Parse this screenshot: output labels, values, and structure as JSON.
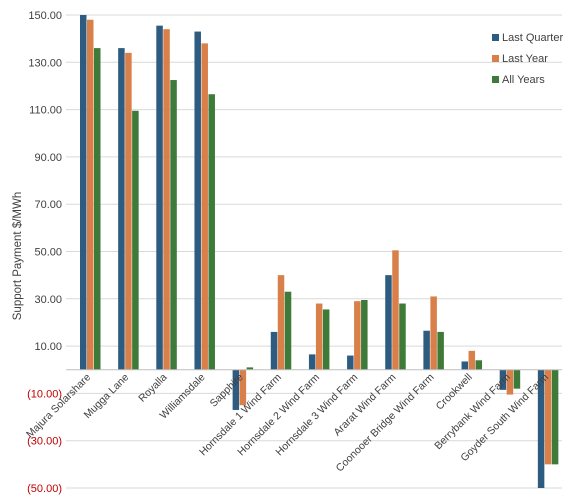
{
  "chart_data": {
    "type": "bar",
    "title": "",
    "xlabel": "",
    "ylabel": "Support Payment $/MWh",
    "ylim": [
      -50,
      150
    ],
    "yticks": [
      -50,
      -30,
      -10,
      10,
      30,
      50,
      70,
      90,
      110,
      130,
      150
    ],
    "ytick_labels": [
      "(50.00)",
      "(30.00)",
      "(10.00)",
      "10.00",
      "30.00",
      "50.00",
      "70.00",
      "90.00",
      "110.00",
      "130.00",
      "150.00"
    ],
    "negative_tick_color": "#c00000",
    "grid": true,
    "legend_position": "top-right",
    "categories": [
      "Majura Solarshare",
      "Mugga Lane",
      "Royalla",
      "Williamsdale",
      "Sapphire",
      "Hornsdale 1 Wind Farm",
      "Hornsdale 2 Wind Farm",
      "Hornsdale 3 Wind Farm",
      "Ararat Wind Farm",
      "Coonooer Bridge Wind Farm",
      "Crookwell",
      "Berrybank Wind Farm",
      "Goyder South Wind Farm"
    ],
    "series": [
      {
        "name": "Last Quarter",
        "color": "#2e5c80",
        "values": [
          150.0,
          136.0,
          145.5,
          143.0,
          -17.0,
          16.0,
          6.5,
          6.0,
          40.0,
          16.5,
          3.5,
          -8.5,
          -50.0
        ]
      },
      {
        "name": "Last Year",
        "color": "#d9804a",
        "values": [
          148.0,
          134.0,
          144.0,
          138.0,
          -15.0,
          40.0,
          28.0,
          29.0,
          50.5,
          31.0,
          8.0,
          -10.5,
          -40.0
        ]
      },
      {
        "name": "All Years",
        "color": "#3e7a3a",
        "values": [
          136.0,
          109.5,
          122.5,
          116.5,
          1.0,
          33.0,
          25.5,
          29.5,
          28.0,
          16.0,
          4.0,
          -8.0,
          -40.0
        ]
      }
    ]
  }
}
